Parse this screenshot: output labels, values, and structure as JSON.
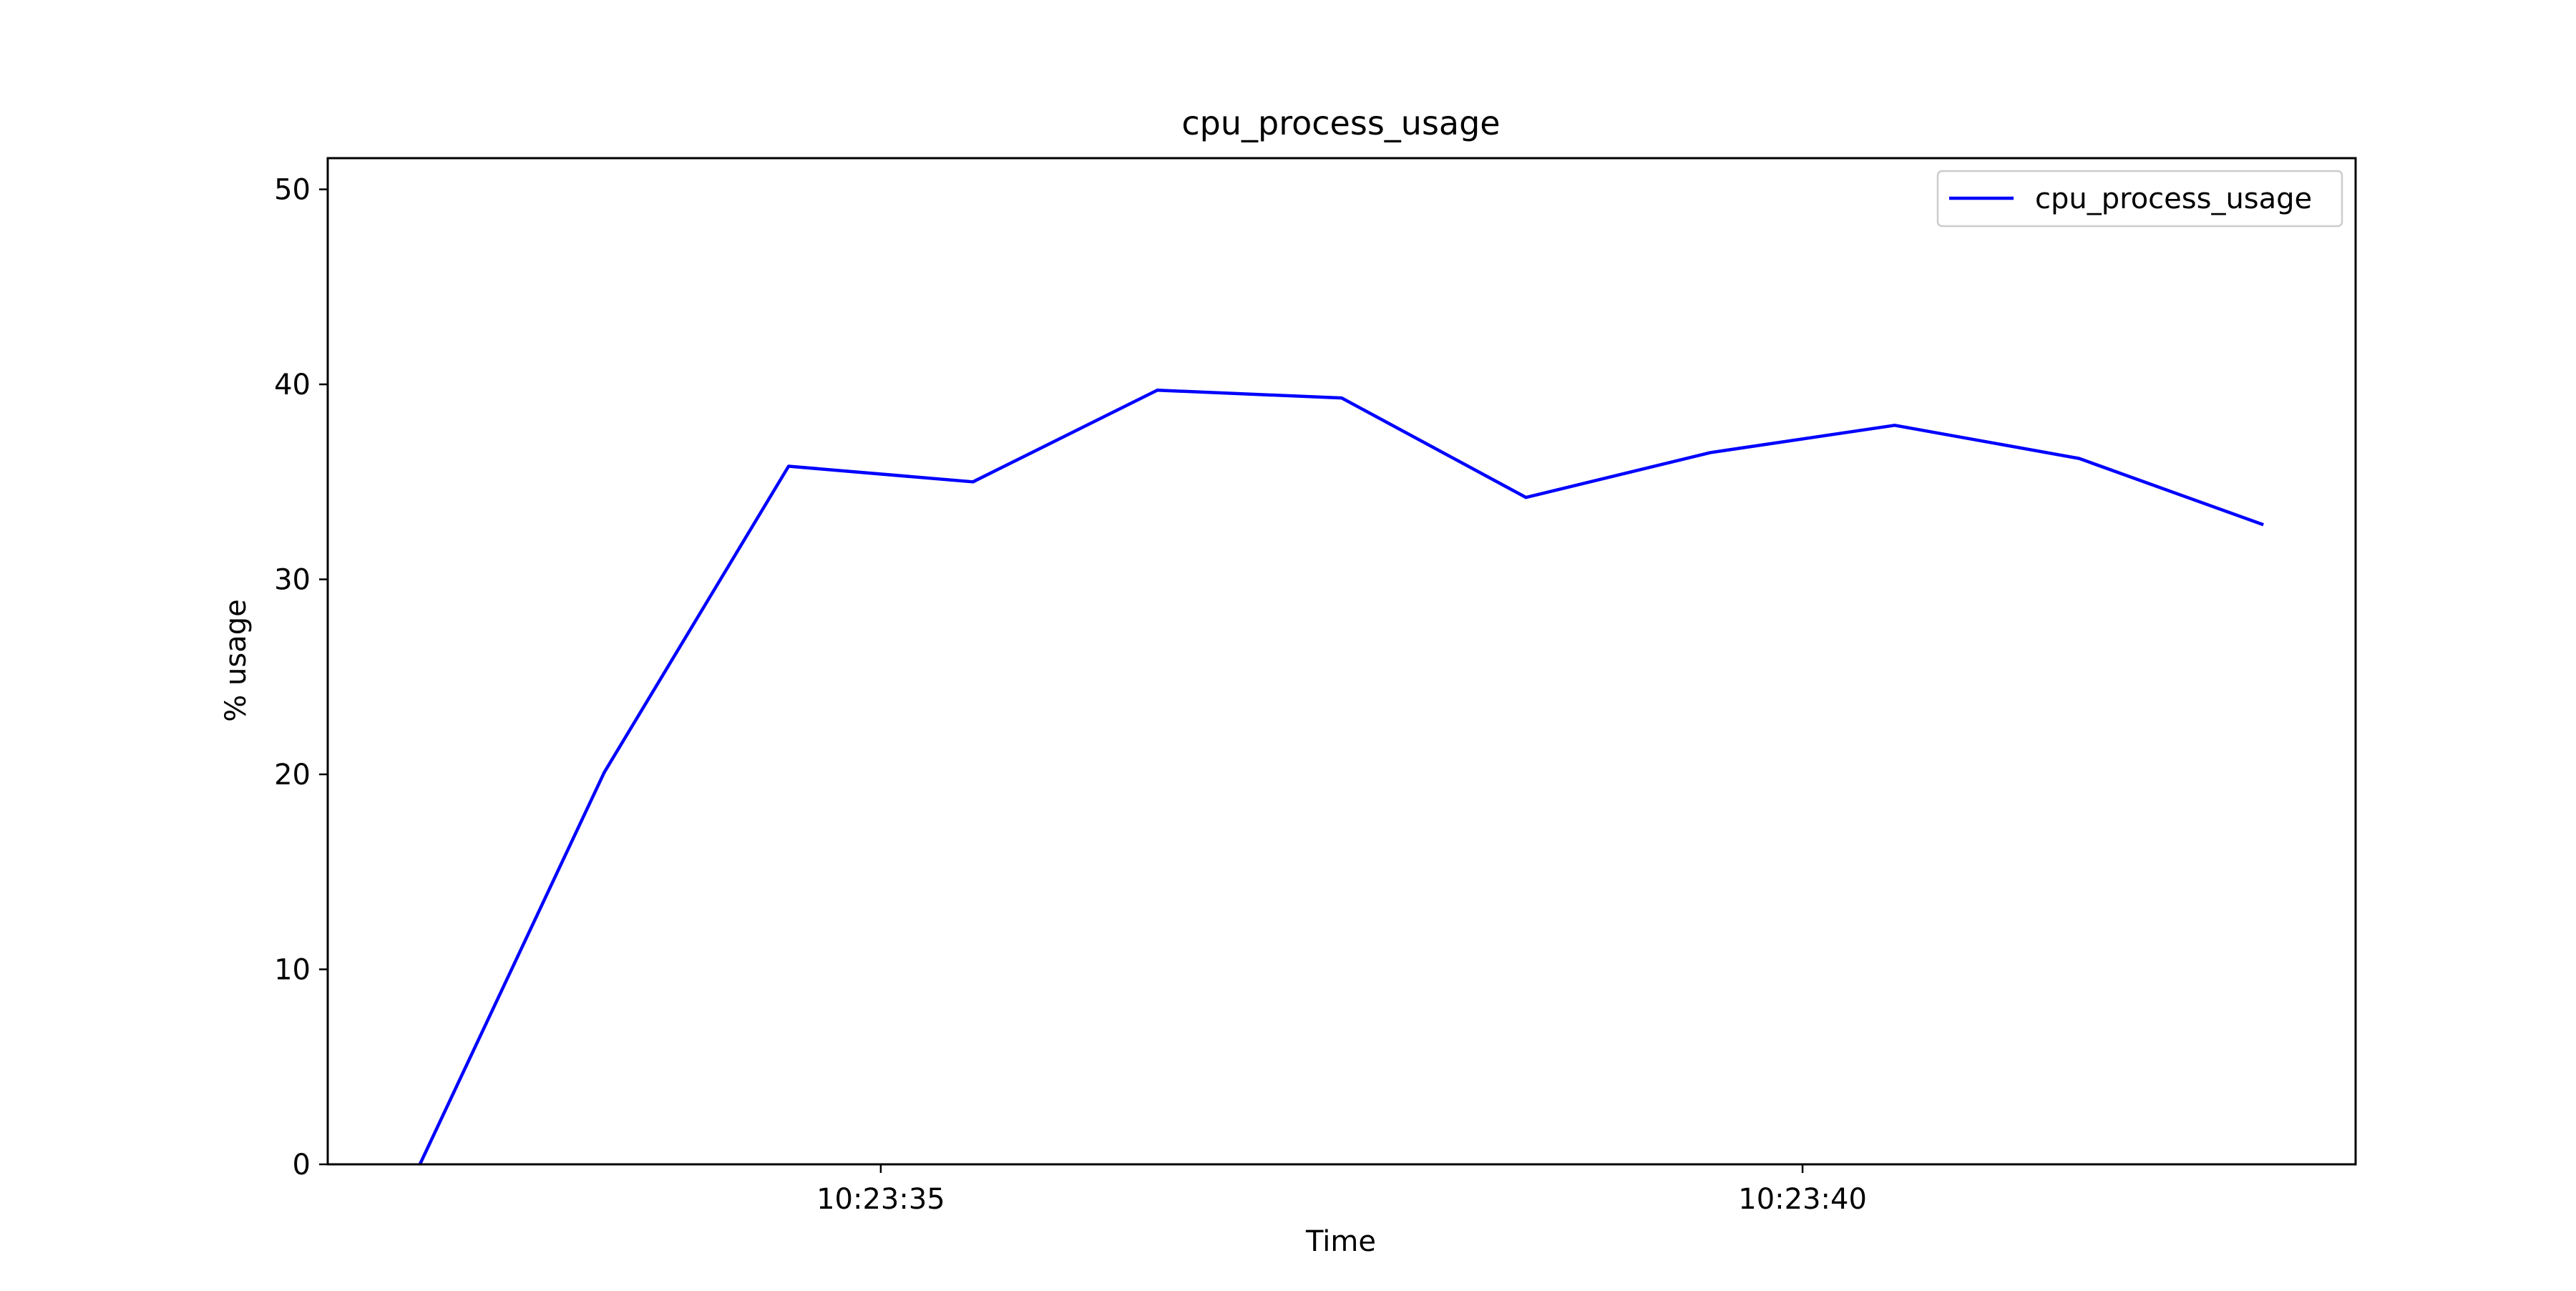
{
  "chart_data": {
    "type": "line",
    "title": "cpu_process_usage",
    "xlabel": "Time",
    "ylabel": "% usage",
    "x": [
      "10:23:32.5",
      "10:23:33.5",
      "10:23:34.5",
      "10:23:35.5",
      "10:23:36.5",
      "10:23:37.5",
      "10:23:38.5",
      "10:23:39.5",
      "10:23:40.5",
      "10:23:41.5",
      "10:23:42.5"
    ],
    "x_ticks": [
      "10:23:35",
      "10:23:40"
    ],
    "x_range": [
      "10:23:32",
      "10:23:43"
    ],
    "ylim": [
      0,
      51.6
    ],
    "y_ticks": [
      0,
      10,
      20,
      30,
      40,
      50
    ],
    "series": [
      {
        "name": "cpu_process_usage",
        "color": "#0000ff",
        "values": [
          0.0,
          20.1,
          35.8,
          35.0,
          39.7,
          39.3,
          34.2,
          36.5,
          37.9,
          36.2,
          32.8
        ]
      }
    ],
    "legend": "top-right",
    "grid": false
  }
}
